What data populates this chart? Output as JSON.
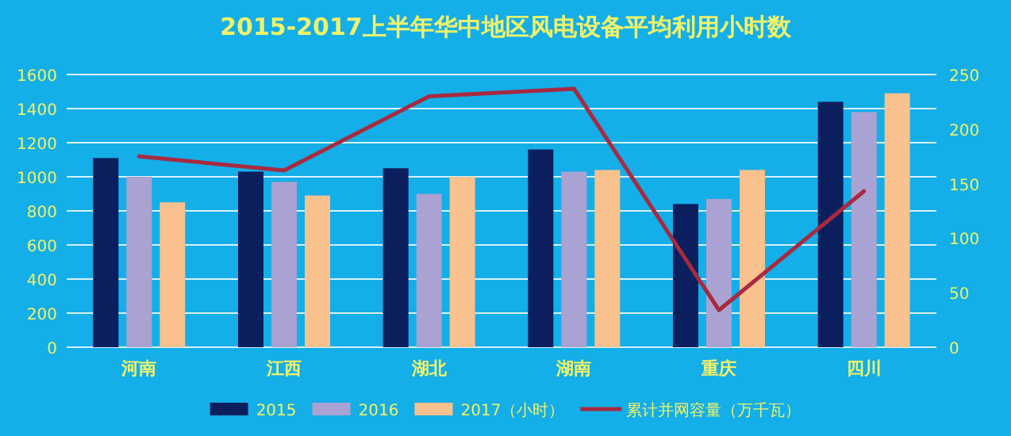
{
  "chart_data": {
    "type": "bar",
    "title": "2015-2017上半年华中地区风电设备平均利用小时数",
    "categories": [
      "河南",
      "江西",
      "湖北",
      "湖南",
      "重庆",
      "四川"
    ],
    "series": [
      {
        "name": "2015",
        "color": "#0b1f5e",
        "values": [
          1110,
          1030,
          1050,
          1160,
          840,
          1440
        ]
      },
      {
        "name": "2016",
        "color": "#a9a2d2",
        "values": [
          1000,
          970,
          900,
          1030,
          870,
          1380
        ]
      },
      {
        "name": "2017（小时）",
        "color": "#f8c18e",
        "values": [
          850,
          890,
          1000,
          1040,
          1040,
          1490
        ]
      },
      {
        "name": "累计并网容量（万千瓦）",
        "type": "line",
        "axis": "y2",
        "color": "#a82a40",
        "values": [
          175,
          162,
          230,
          237,
          34,
          143
        ]
      }
    ],
    "ylim": [
      0,
      1600
    ],
    "yticks": [
      0,
      200,
      400,
      600,
      800,
      1000,
      1200,
      1400,
      1600
    ],
    "y2lim": [
      0,
      250
    ],
    "y2ticks": [
      0,
      50,
      100,
      150,
      200,
      250
    ],
    "grid": "y",
    "legend": "bottom"
  }
}
